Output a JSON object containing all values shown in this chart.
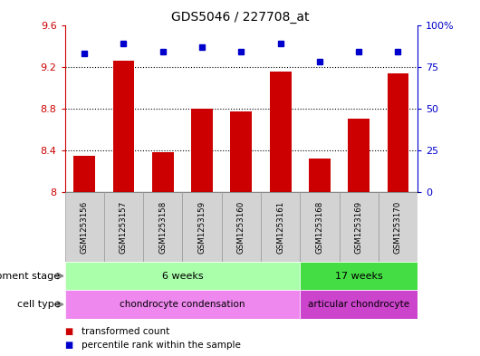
{
  "title": "GDS5046 / 227708_at",
  "samples": [
    "GSM1253156",
    "GSM1253157",
    "GSM1253158",
    "GSM1253159",
    "GSM1253160",
    "GSM1253161",
    "GSM1253168",
    "GSM1253169",
    "GSM1253170"
  ],
  "transformed_count": [
    8.35,
    9.26,
    8.38,
    8.8,
    8.77,
    9.15,
    8.32,
    8.7,
    9.14
  ],
  "percentile_rank": [
    83,
    89,
    84,
    87,
    84,
    89,
    78,
    84,
    84
  ],
  "ylim_left": [
    8.0,
    9.6
  ],
  "ylim_right": [
    0,
    100
  ],
  "yticks_left": [
    8.0,
    8.4,
    8.8,
    9.2,
    9.6
  ],
  "yticks_right": [
    0,
    25,
    50,
    75,
    100
  ],
  "bar_color": "#cc0000",
  "point_color": "#0000cc",
  "dev_stage_groups": [
    {
      "label": "6 weeks",
      "start": 0,
      "end": 5,
      "color": "#aaffaa"
    },
    {
      "label": "17 weeks",
      "start": 6,
      "end": 8,
      "color": "#44dd44"
    }
  ],
  "cell_type_groups": [
    {
      "label": "chondrocyte condensation",
      "start": 0,
      "end": 5,
      "color": "#ee88ee"
    },
    {
      "label": "articular chondrocyte",
      "start": 6,
      "end": 8,
      "color": "#cc44cc"
    }
  ],
  "dev_stage_label": "development stage",
  "cell_type_label": "cell type",
  "legend_bar_label": "transformed count",
  "legend_point_label": "percentile rank within the sample",
  "left_axis_color": "#cc0000",
  "right_axis_color": "#0000cc",
  "sample_box_color": "#d3d3d3",
  "sample_box_edge": "#999999"
}
